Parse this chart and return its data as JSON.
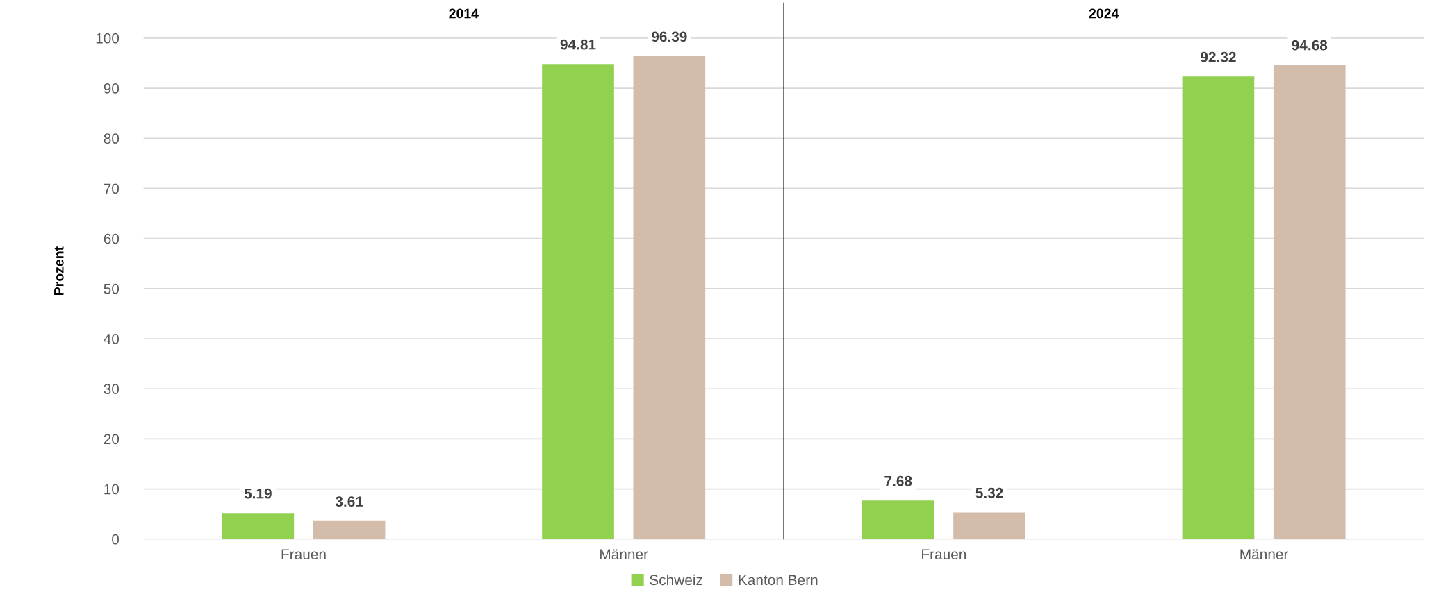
{
  "chart_data": [
    {
      "type": "bar",
      "title": "2014",
      "ylabel": "Prozent",
      "categories": [
        "Frauen",
        "Männer"
      ],
      "series": [
        {
          "name": "Schweiz",
          "color": "#92d050",
          "values": [
            5.19,
            94.81
          ]
        },
        {
          "name": "Kanton Bern",
          "color": "#d3bca9",
          "values": [
            3.61,
            96.39
          ]
        }
      ],
      "ylim": [
        0,
        107
      ],
      "yticks": [
        0,
        10,
        20,
        30,
        40,
        50,
        60,
        70,
        80,
        90,
        100
      ],
      "grid": "y",
      "data_labels": true,
      "legend": "bottom"
    },
    {
      "type": "bar",
      "title": "2024",
      "categories": [
        "Frauen",
        "Männer"
      ],
      "series": [
        {
          "name": "Schweiz",
          "color": "#92d050",
          "values": [
            7.68,
            92.32
          ]
        },
        {
          "name": "Kanton Bern",
          "color": "#d3bca9",
          "values": [
            5.32,
            94.68
          ]
        }
      ],
      "ylim": [
        0,
        107
      ],
      "yticks": [
        0,
        10,
        20,
        30,
        40,
        50,
        60,
        70,
        80,
        90,
        100
      ],
      "grid": "y",
      "data_labels": true,
      "tick_labels": "x",
      "legend": "bottom"
    }
  ]
}
